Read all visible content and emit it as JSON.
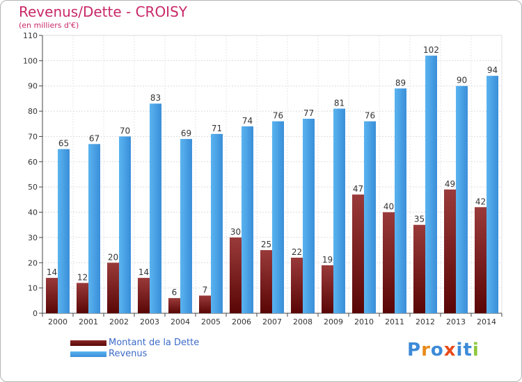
{
  "header": {
    "title": "Revenus/Dette - CROISY",
    "subtitle": "(en milliers d'€)"
  },
  "chart_data": {
    "type": "bar",
    "categories": [
      "2000",
      "2001",
      "2002",
      "2003",
      "2004",
      "2005",
      "2006",
      "2007",
      "2008",
      "2009",
      "2010",
      "2011",
      "2012",
      "2013",
      "2014"
    ],
    "series": [
      {
        "name": "Montant de la Dette",
        "color": "#6e1010",
        "values": [
          14,
          12,
          20,
          14,
          6,
          7,
          30,
          25,
          22,
          19,
          47,
          40,
          35,
          49,
          42
        ]
      },
      {
        "name": "Revenus",
        "color": "#3a9ee8",
        "values": [
          65,
          67,
          70,
          83,
          69,
          71,
          74,
          76,
          77,
          81,
          76,
          89,
          102,
          90,
          94
        ]
      }
    ],
    "ylim": [
      0,
      110
    ],
    "yticks": [
      0,
      10,
      20,
      30,
      40,
      50,
      60,
      70,
      80,
      90,
      100,
      110
    ],
    "grid": true,
    "legend_position": "bottom-left"
  },
  "legend": {
    "items": [
      {
        "label": "Montant de la Dette",
        "color": "#6e1010"
      },
      {
        "label": "Revenus",
        "color": "#3a9ee8"
      }
    ]
  },
  "logo": {
    "letters": [
      "P",
      "r",
      "o",
      "x",
      "i",
      "t",
      "i"
    ],
    "colors": [
      "#3c8ad8",
      "#e88a1a",
      "#3c8ad8",
      "#e84a1a",
      "#3c8ad8",
      "#3c8ad8",
      "#8cc83c"
    ]
  }
}
